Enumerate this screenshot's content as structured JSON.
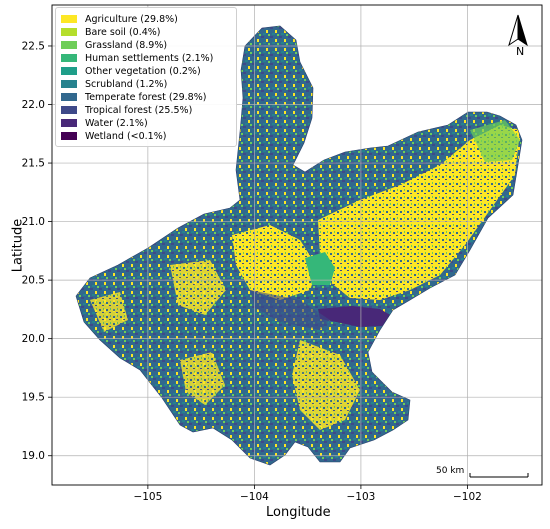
{
  "axes": {
    "xlabel": "Longitude",
    "ylabel": "Latitude",
    "x_ticks": [
      "−105",
      "−104",
      "−103",
      "−102"
    ],
    "y_ticks": [
      "19.0",
      "19.5",
      "20.0",
      "20.5",
      "21.0",
      "21.5",
      "22.0",
      "22.5"
    ],
    "x_tick_values": [
      -105,
      -104,
      -103,
      -102
    ],
    "y_tick_values": [
      19.0,
      19.5,
      20.0,
      20.5,
      21.0,
      21.5,
      22.0,
      22.5
    ],
    "xlim": [
      -105.9,
      -101.3
    ],
    "ylim": [
      18.75,
      22.85
    ],
    "grid": true
  },
  "legend": {
    "placement": "top-left",
    "items": [
      {
        "label": "Agriculture (29.8%)",
        "color": "#fde725"
      },
      {
        "label": "Bare soil (0.4%)",
        "color": "#b5de2b"
      },
      {
        "label": "Grassland (8.9%)",
        "color": "#6ece58"
      },
      {
        "label": "Human settlements (2.1%)",
        "color": "#35b779"
      },
      {
        "label": "Other vegetation (0.2%)",
        "color": "#1f9e89"
      },
      {
        "label": "Scrubland (1.2%)",
        "color": "#26828e"
      },
      {
        "label": "Temperate forest (29.8%)",
        "color": "#31688e"
      },
      {
        "label": "Tropical forest (25.5%)",
        "color": "#3e4989"
      },
      {
        "label": "Water (2.1%)",
        "color": "#482878"
      },
      {
        "label": "Wetland (<0.1%)",
        "color": "#440154"
      }
    ]
  },
  "north_arrow": {
    "label": "N",
    "icon": "north-arrow-icon"
  },
  "scale_bar": {
    "label": "50 km"
  }
}
